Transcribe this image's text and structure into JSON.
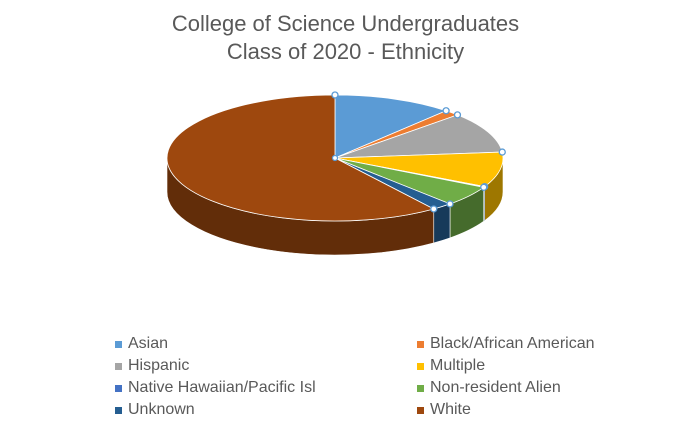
{
  "chart_data": {
    "type": "pie",
    "title_lines": [
      "College of Science Undergraduates",
      "Class of 2020 - Ethnicity"
    ],
    "categories": [
      "Asian",
      "Black/African American",
      "Hispanic",
      "Multiple",
      "Native Hawaiian/Pacific Isl",
      "Non-resident Alien",
      "Unknown",
      "White"
    ],
    "values": [
      11.5,
      1.5,
      10.5,
      9.0,
      0.2,
      5.3,
      2.0,
      60.0
    ],
    "colors": [
      "#5B9BD5",
      "#ED7D31",
      "#A5A5A5",
      "#FFC000",
      "#4472C4",
      "#70AD47",
      "#255E91",
      "#9E480E"
    ],
    "legend_position": "bottom",
    "three_d": true
  }
}
